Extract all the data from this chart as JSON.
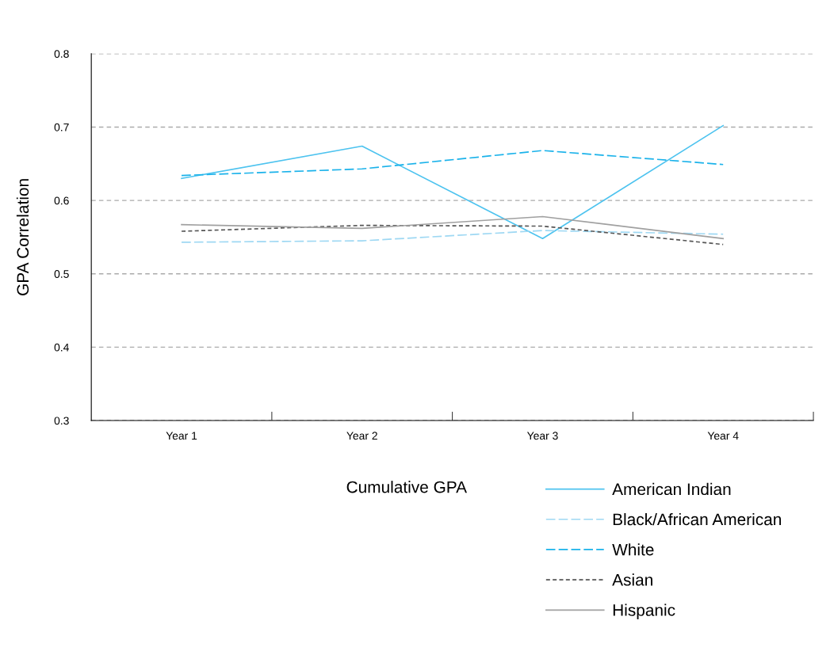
{
  "chart_data": {
    "type": "line",
    "ylabel": "GPA Correlation",
    "legend_title": "Cumulative GPA",
    "categories": [
      "Year 1",
      "Year 2",
      "Year 3",
      "Year 4"
    ],
    "series": [
      {
        "name": "American Indian",
        "color": "#4dc3ef",
        "line_style": "solid",
        "values": [
          0.63,
          0.674,
          0.548,
          0.702
        ]
      },
      {
        "name": "Black/African American",
        "color": "#9ed8f3",
        "line_style": "dashed",
        "values": [
          0.543,
          0.545,
          0.559,
          0.554
        ]
      },
      {
        "name": "White",
        "color": "#1ab2ea",
        "line_style": "dashed",
        "values": [
          0.634,
          0.643,
          0.668,
          0.649
        ]
      },
      {
        "name": "Asian",
        "color": "#555555",
        "line_style": "dotted",
        "values": [
          0.558,
          0.566,
          0.565,
          0.54
        ]
      },
      {
        "name": "Hispanic",
        "color": "#a0a0a0",
        "line_style": "solid",
        "values": [
          0.567,
          0.562,
          0.578,
          0.548
        ]
      }
    ],
    "ylim": [
      0.3,
      0.8
    ],
    "yticks": [
      0.3,
      0.4,
      0.5,
      0.6,
      0.7,
      0.8
    ],
    "grid": "y",
    "legend": "bottom",
    "marker": "none"
  }
}
